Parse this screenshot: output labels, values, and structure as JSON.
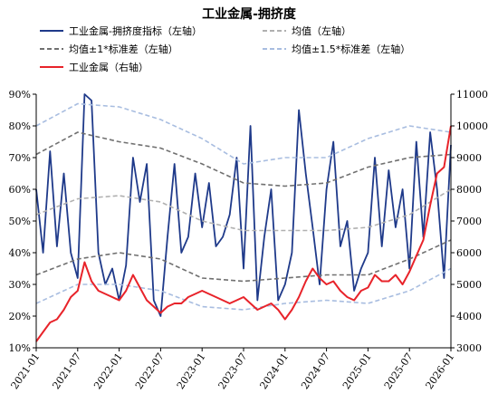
{
  "chart_data": {
    "type": "line",
    "title": "工业金属-拥挤度",
    "x_ticks": [
      "2021-01",
      "2021-07",
      "2022-01",
      "2022-07",
      "2023-01",
      "2023-07",
      "2024-01",
      "2024-07",
      "2025-01",
      "2025-07",
      "2026-01"
    ],
    "x_range": [
      "2021-01",
      "2026-01"
    ],
    "y_left": {
      "ticks": [
        "10%",
        "20%",
        "30%",
        "40%",
        "50%",
        "60%",
        "70%",
        "80%",
        "90%"
      ],
      "range": [
        10,
        90
      ]
    },
    "y_right": {
      "ticks": [
        "3000",
        "4000",
        "5000",
        "6000",
        "7000",
        "8000",
        "9000",
        "10000",
        "11000"
      ],
      "range": [
        3000,
        11000
      ]
    },
    "legend": [
      {
        "key": "crowding",
        "label": "工业金属-拥挤度指标（左轴）",
        "color": "#1f3a8a",
        "style": "solid"
      },
      {
        "key": "mean",
        "label": "均值（左轴）",
        "color": "#b0b0b0",
        "style": "dashed"
      },
      {
        "key": "band1",
        "label": "均值±1*标准差（左轴）",
        "color": "#707070",
        "style": "dashed"
      },
      {
        "key": "band15",
        "label": "均值±1.5*标准差（左轴）",
        "color": "#a8bde0",
        "style": "dashed"
      },
      {
        "key": "price",
        "label": "工业金属（右轴）",
        "color": "#e8232a",
        "style": "solid"
      }
    ],
    "series": [
      {
        "key": "crowding",
        "axis": "left",
        "x": [
          "2021-01",
          "2021-02",
          "2021-03",
          "2021-04",
          "2021-05",
          "2021-06",
          "2021-07",
          "2021-08",
          "2021-09",
          "2021-10",
          "2021-11",
          "2021-12",
          "2022-01",
          "2022-02",
          "2022-03",
          "2022-04",
          "2022-05",
          "2022-06",
          "2022-07",
          "2022-08",
          "2022-09",
          "2022-10",
          "2022-11",
          "2022-12",
          "2023-01",
          "2023-02",
          "2023-03",
          "2023-04",
          "2023-05",
          "2023-06",
          "2023-07",
          "2023-08",
          "2023-09",
          "2023-10",
          "2023-11",
          "2023-12",
          "2024-01",
          "2024-02",
          "2024-03",
          "2024-04",
          "2024-05",
          "2024-06",
          "2024-07",
          "2024-08",
          "2024-09",
          "2024-10",
          "2024-11",
          "2024-12",
          "2025-01",
          "2025-02",
          "2025-03",
          "2025-04",
          "2025-05",
          "2025-06",
          "2025-07",
          "2025-08",
          "2025-09",
          "2025-10",
          "2025-11",
          "2025-12",
          "2026-01"
        ],
        "values": [
          60,
          40,
          72,
          42,
          65,
          40,
          32,
          90,
          88,
          40,
          30,
          35,
          25,
          36,
          70,
          56,
          68,
          25,
          20,
          45,
          68,
          40,
          45,
          65,
          48,
          62,
          42,
          45,
          52,
          70,
          35,
          80,
          25,
          45,
          60,
          25,
          30,
          40,
          85,
          65,
          48,
          30,
          60,
          75,
          42,
          50,
          28,
          35,
          40,
          70,
          42,
          66,
          48,
          60,
          35,
          75,
          45,
          78,
          60,
          32,
          74
        ]
      },
      {
        "key": "mean",
        "axis": "left",
        "x": [
          "2021-01",
          "2021-07",
          "2022-01",
          "2022-07",
          "2023-01",
          "2023-07",
          "2024-01",
          "2024-07",
          "2025-01",
          "2025-07",
          "2026-01"
        ],
        "values": [
          52,
          57,
          58,
          56,
          50,
          47,
          47,
          47,
          48,
          52,
          60
        ]
      },
      {
        "key": "band1_upper",
        "axis": "left",
        "x": [
          "2021-01",
          "2021-07",
          "2022-01",
          "2022-07",
          "2023-01",
          "2023-07",
          "2024-01",
          "2024-07",
          "2025-01",
          "2025-07",
          "2026-01"
        ],
        "values": [
          71,
          78,
          75,
          73,
          68,
          62,
          61,
          62,
          67,
          70,
          71
        ]
      },
      {
        "key": "band1_lower",
        "axis": "left",
        "x": [
          "2021-01",
          "2021-07",
          "2022-01",
          "2022-07",
          "2023-01",
          "2023-07",
          "2024-01",
          "2024-07",
          "2025-01",
          "2025-07",
          "2026-01"
        ],
        "values": [
          33,
          38,
          40,
          38,
          32,
          31,
          32,
          33,
          33,
          38,
          44
        ]
      },
      {
        "key": "band15_upper",
        "axis": "left",
        "x": [
          "2021-01",
          "2021-07",
          "2022-01",
          "2022-07",
          "2023-01",
          "2023-07",
          "2024-01",
          "2024-07",
          "2025-01",
          "2025-07",
          "2026-01"
        ],
        "values": [
          80,
          87,
          86,
          82,
          76,
          68,
          70,
          70,
          76,
          80,
          78
        ]
      },
      {
        "key": "band15_lower",
        "axis": "left",
        "x": [
          "2021-01",
          "2021-07",
          "2022-01",
          "2022-07",
          "2023-01",
          "2023-07",
          "2024-01",
          "2024-07",
          "2025-01",
          "2025-07",
          "2026-01"
        ],
        "values": [
          24,
          30,
          30,
          28,
          23,
          22,
          24,
          25,
          24,
          28,
          35
        ]
      },
      {
        "key": "price",
        "axis": "right",
        "x": [
          "2021-01",
          "2021-02",
          "2021-03",
          "2021-04",
          "2021-05",
          "2021-06",
          "2021-07",
          "2021-08",
          "2021-09",
          "2021-10",
          "2021-11",
          "2021-12",
          "2022-01",
          "2022-02",
          "2022-03",
          "2022-04",
          "2022-05",
          "2022-06",
          "2022-07",
          "2022-08",
          "2022-09",
          "2022-10",
          "2022-11",
          "2022-12",
          "2023-01",
          "2023-02",
          "2023-03",
          "2023-04",
          "2023-05",
          "2023-06",
          "2023-07",
          "2023-08",
          "2023-09",
          "2023-10",
          "2023-11",
          "2023-12",
          "2024-01",
          "2024-02",
          "2024-03",
          "2024-04",
          "2024-05",
          "2024-06",
          "2024-07",
          "2024-08",
          "2024-09",
          "2024-10",
          "2024-11",
          "2024-12",
          "2025-01",
          "2025-02",
          "2025-03",
          "2025-04",
          "2025-05",
          "2025-06",
          "2025-07",
          "2025-08",
          "2025-09",
          "2025-10",
          "2025-11",
          "2025-12",
          "2026-01"
        ],
        "values": [
          3200,
          3500,
          3800,
          3900,
          4200,
          4600,
          4800,
          5700,
          5100,
          4800,
          4700,
          4600,
          4500,
          4800,
          5300,
          4900,
          4500,
          4300,
          4100,
          4300,
          4400,
          4400,
          4600,
          4700,
          4800,
          4700,
          4600,
          4500,
          4400,
          4500,
          4600,
          4400,
          4200,
          4300,
          4400,
          4200,
          3900,
          4200,
          4600,
          5100,
          5500,
          5200,
          5000,
          5100,
          4800,
          4600,
          4500,
          4800,
          4900,
          5300,
          5100,
          5100,
          5300,
          5000,
          5400,
          5900,
          6400,
          7500,
          8500,
          8700,
          10000
        ]
      }
    ]
  }
}
